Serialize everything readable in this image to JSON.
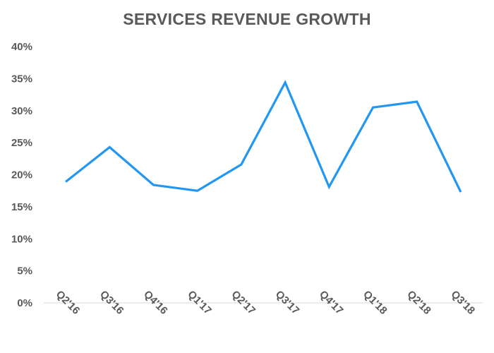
{
  "chart_data": {
    "type": "line",
    "title": "SERVICES REVENUE GROWTH",
    "xlabel": "",
    "ylabel": "",
    "categories": [
      "Q2'16",
      "Q3'16",
      "Q4'16",
      "Q1'17",
      "Q2'17",
      "Q3'17",
      "Q4'17",
      "Q1'18",
      "Q2'18",
      "Q3'18"
    ],
    "series": [
      {
        "values": [
          18.9,
          24.3,
          18.4,
          17.5,
          21.6,
          34.4,
          18.1,
          30.5,
          31.4,
          17.3
        ],
        "color": "#2196f3"
      }
    ],
    "ylim": [
      0,
      40
    ],
    "yticks": [
      "0%",
      "5%",
      "10%",
      "15%",
      "20%",
      "25%",
      "30%",
      "35%",
      "40%"
    ],
    "grid": false,
    "legend": "none"
  }
}
